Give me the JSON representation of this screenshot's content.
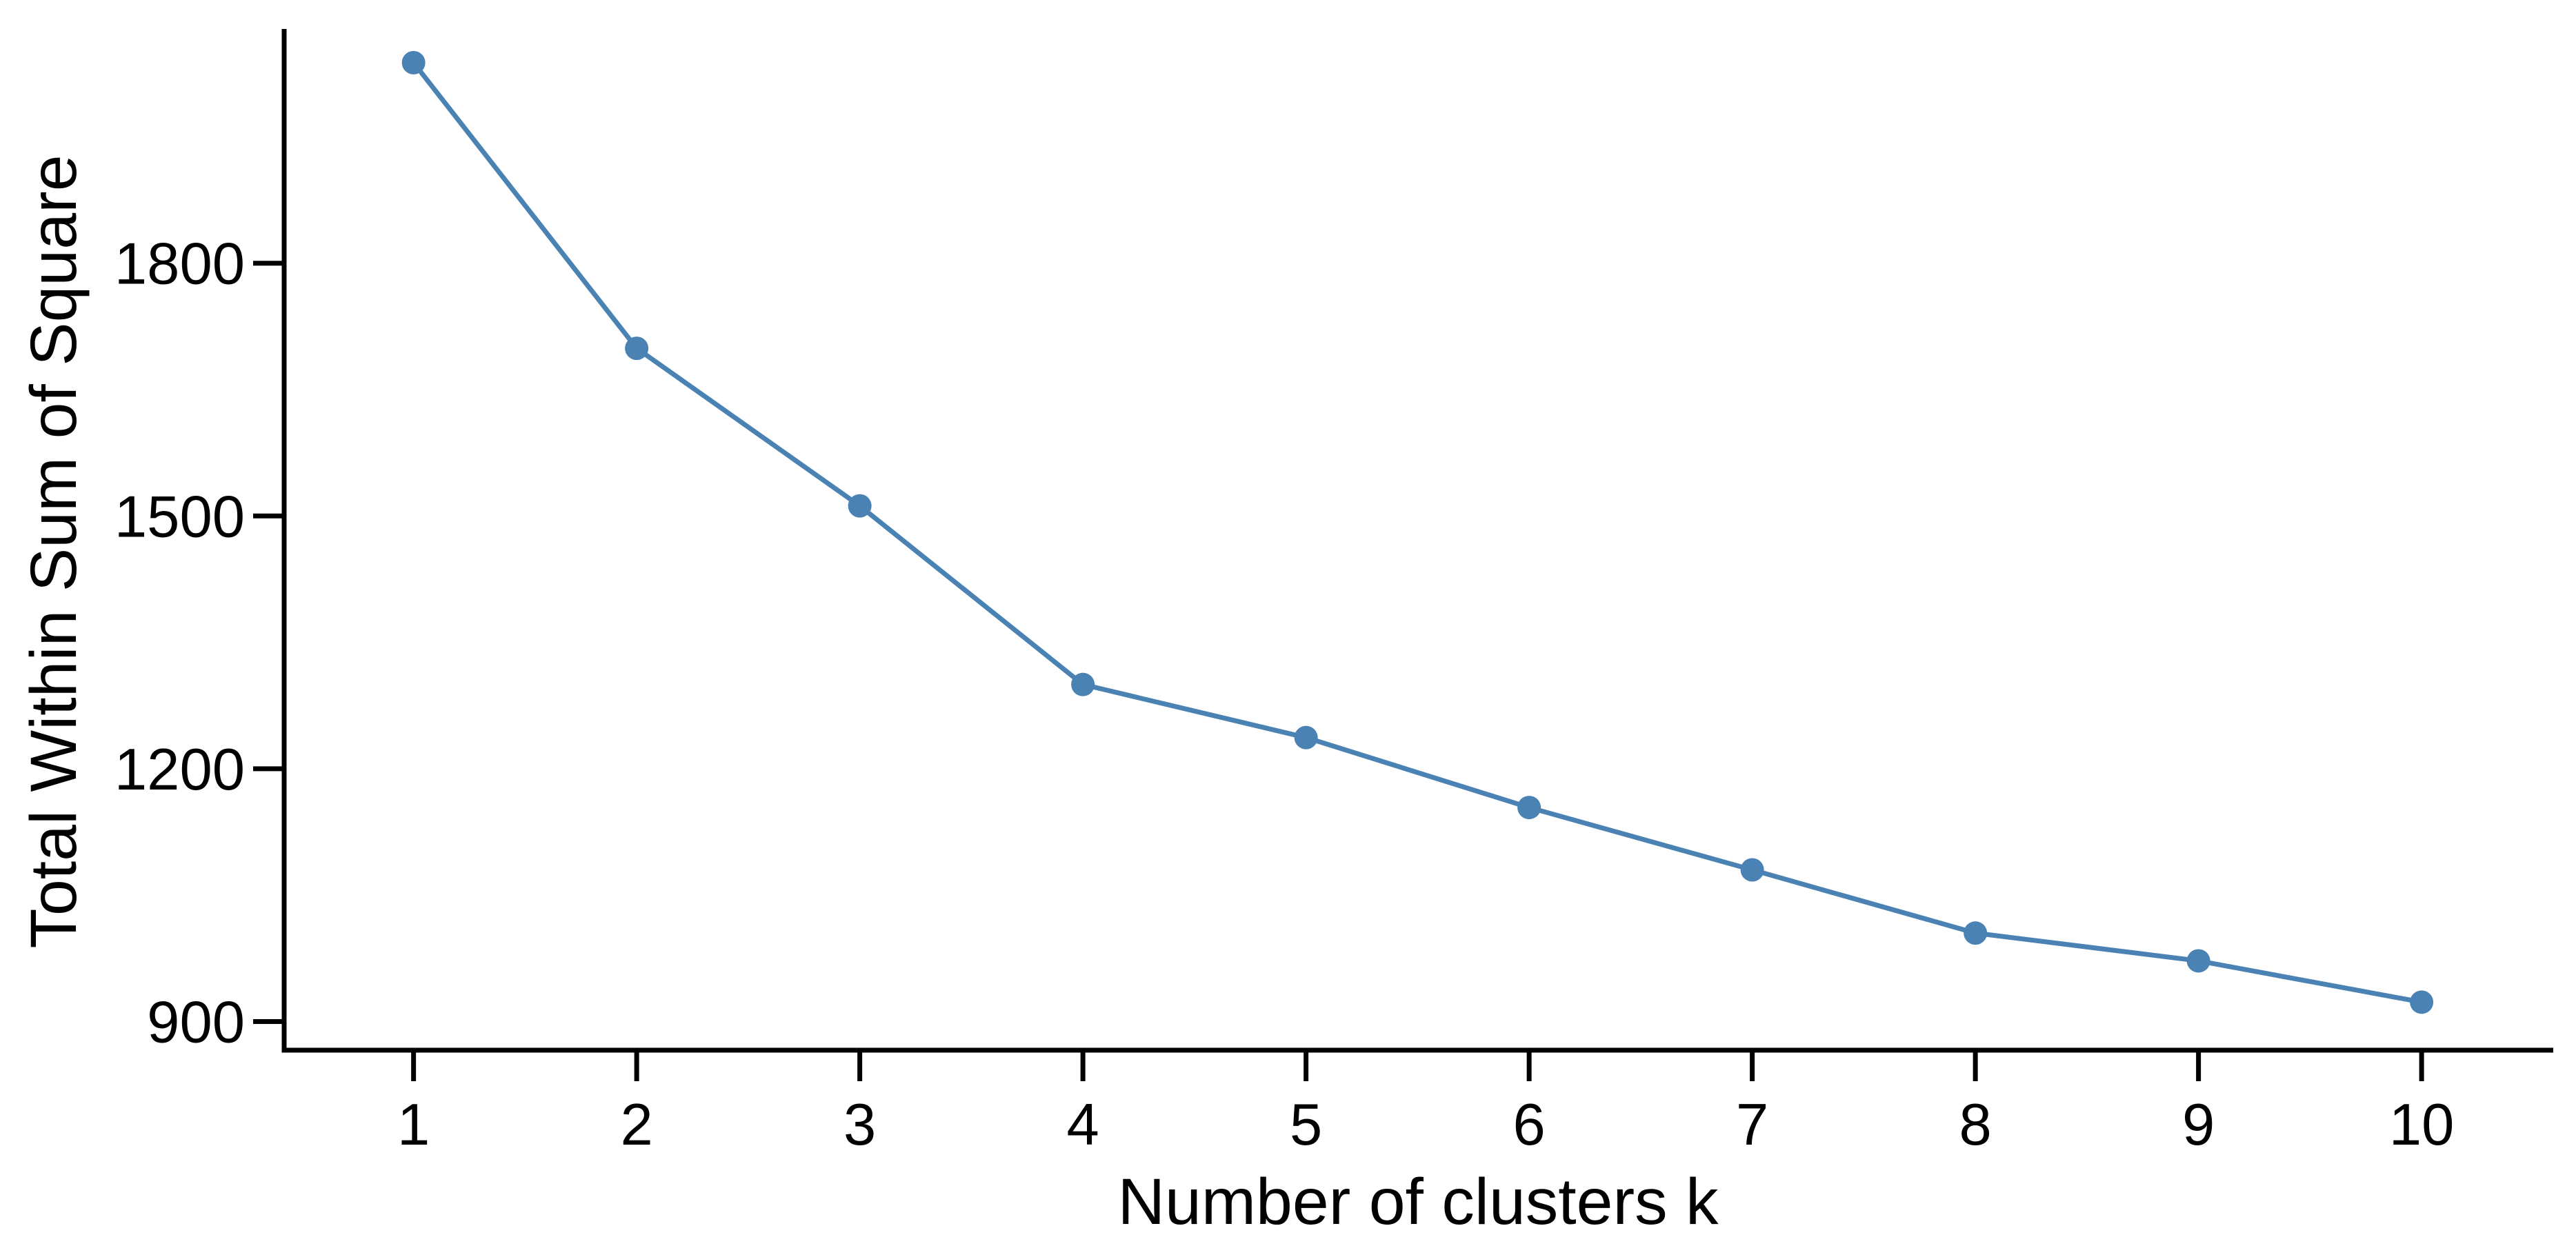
{
  "chart_data": {
    "type": "line",
    "title": "",
    "xlabel": "Number of clusters k",
    "ylabel": "Total Within Sum of Square",
    "x": [
      1,
      2,
      3,
      4,
      5,
      6,
      7,
      8,
      9,
      10
    ],
    "series": [
      {
        "name": "Total Within Sum of Square",
        "values": [
          2038,
          1699,
          1512,
          1300,
          1237,
          1154,
          1080,
          1005,
          972,
          923
        ]
      }
    ],
    "x_tick_labels": [
      "1",
      "2",
      "3",
      "4",
      "5",
      "6",
      "7",
      "8",
      "9",
      "10"
    ],
    "x_ticks": [
      1,
      2,
      3,
      4,
      5,
      6,
      7,
      8,
      9,
      10
    ],
    "y_tick_labels": [
      "900",
      "1200",
      "1500",
      "1800"
    ],
    "y_ticks": [
      900,
      1200,
      1500,
      1800
    ],
    "xlim": [
      0.42,
      10.59
    ],
    "ylim": [
      866,
      2078
    ],
    "grid": false,
    "legend_position": "none",
    "marker": "circle",
    "line_color": "#4a82b4",
    "marker_color": "#4a82b4",
    "axis_color": "#000000",
    "text_color": "#000000"
  }
}
